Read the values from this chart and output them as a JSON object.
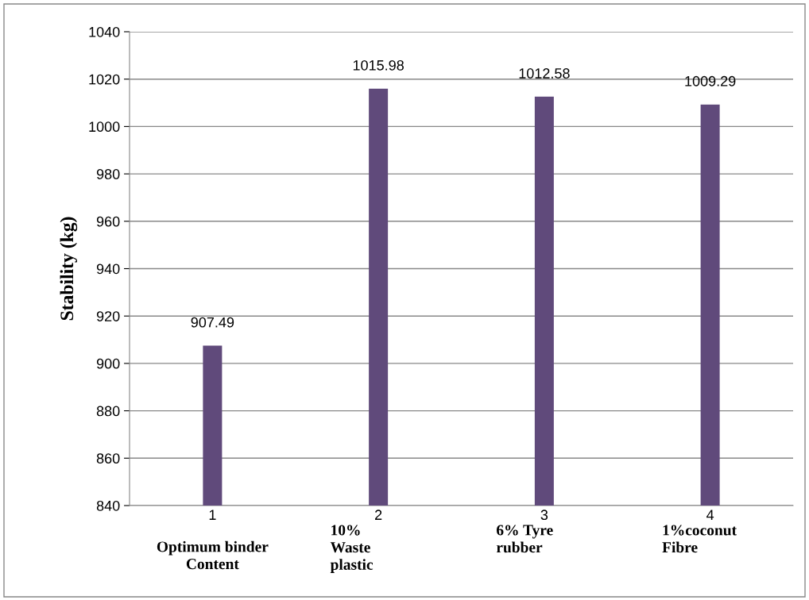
{
  "chart_data": {
    "type": "bar",
    "ylabel": "Stability (kg)",
    "categories": [
      "1",
      "2",
      "3",
      "4"
    ],
    "values": [
      907.49,
      1015.98,
      1012.58,
      1009.29
    ],
    "color": "#604a7b",
    "data_labels": true,
    "ylim": [
      840,
      1040
    ],
    "yticks": [
      840,
      860,
      880,
      900,
      920,
      940,
      960,
      980,
      1000,
      1020,
      1040
    ],
    "grid": "y",
    "annotations": [
      "Optimum binder\nContent",
      "10%\nWaste\nplastic",
      "6% Tyre\nrubber",
      "1%coconut\nFibre"
    ]
  }
}
